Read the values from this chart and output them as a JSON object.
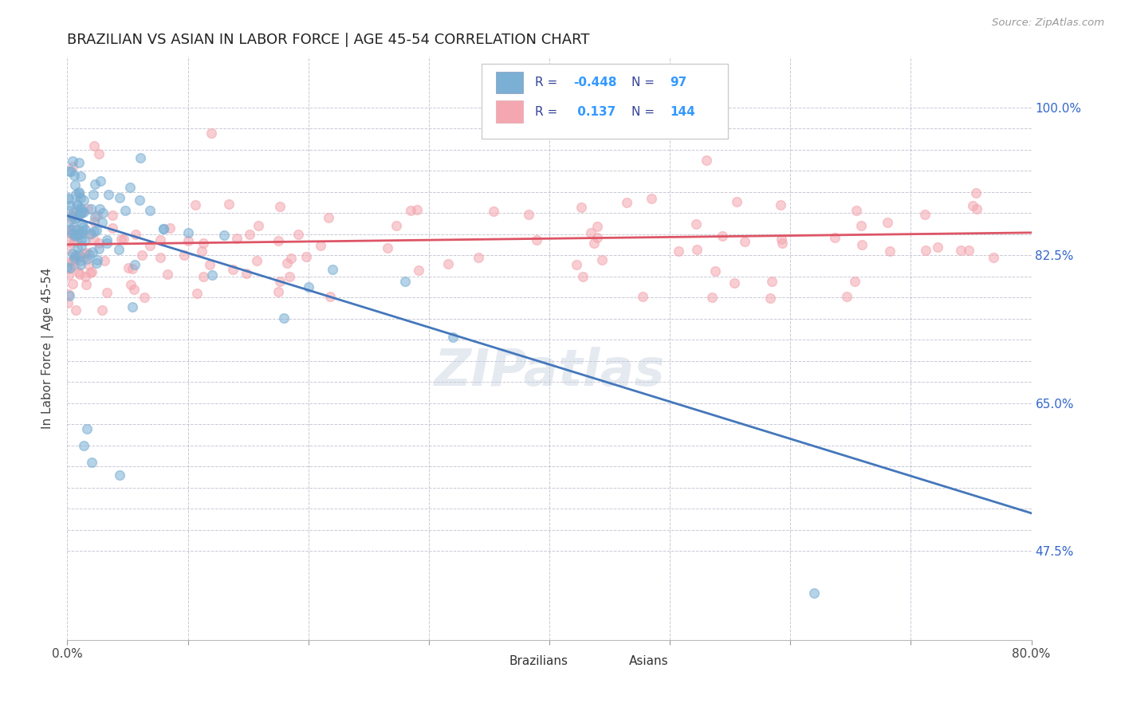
{
  "title": "BRAZILIAN VS ASIAN IN LABOR FORCE | AGE 45-54 CORRELATION CHART",
  "source_text": "Source: ZipAtlas.com",
  "ylabel": "In Labor Force | Age 45-54",
  "xlim": [
    0.0,
    0.8
  ],
  "ylim": [
    0.37,
    1.06
  ],
  "blue_R": -0.448,
  "blue_N": 97,
  "pink_R": 0.137,
  "pink_N": 144,
  "blue_color": "#7BAFD4",
  "pink_color": "#F4A7B0",
  "blue_line_color": "#4477BB",
  "pink_line_color": "#DD5566",
  "title_color": "#222222",
  "legend_R_color": "#334499",
  "legend_N_color": "#3399FF",
  "watermark_color": "#C0CCDD",
  "blue_line_x0": 0.0,
  "blue_line_y0": 0.872,
  "blue_line_x1": 0.8,
  "blue_line_y1": 0.52,
  "pink_line_x0": 0.0,
  "pink_line_y0": 0.838,
  "pink_line_x1": 0.8,
  "pink_line_y1": 0.852,
  "ytick_labels": {
    "0.475": "47.5%",
    "0.65": "65.0%",
    "0.825": "82.5%",
    "1.00": "100.0%"
  },
  "xtick_labels": {
    "0.0": "0.0%",
    "0.8": "80.0%"
  }
}
